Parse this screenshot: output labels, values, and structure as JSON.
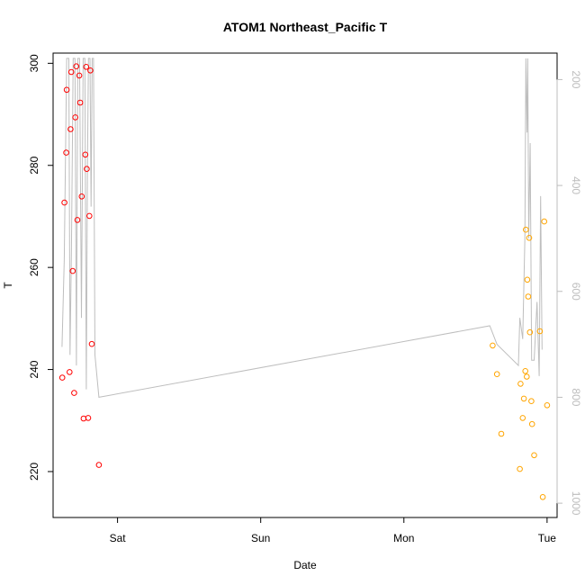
{
  "chart_data": {
    "type": "scatter",
    "title": "ATOM1 Northeast_Pacific T",
    "xlabel": "Date",
    "ylabel": "T",
    "x_unit": "days since Fri 00:00",
    "x_ticks": [
      {
        "x": 1,
        "label": "Sat"
      },
      {
        "x": 2,
        "label": "Sun"
      },
      {
        "x": 3,
        "label": "Mon"
      },
      {
        "x": 4,
        "label": "Tue"
      }
    ],
    "xlim": [
      0.55,
      4.07
    ],
    "ylim": [
      211,
      302
    ],
    "yticks": [
      220,
      240,
      260,
      280,
      300
    ],
    "y2_ticks": [
      200,
      400,
      600,
      800,
      1000
    ],
    "y2lim": [
      1027,
      150
    ],
    "colors": {
      "series1": "#ff0000",
      "series2": "#ffa500",
      "pressure_line": "#bebebe"
    },
    "series": [
      {
        "points": [
          [
            0.614,
            238.4
          ],
          [
            0.629,
            272.7
          ],
          [
            0.642,
            282.5
          ],
          [
            0.645,
            294.8
          ],
          [
            0.665,
            239.5
          ],
          [
            0.672,
            287.1
          ],
          [
            0.677,
            298.3
          ],
          [
            0.687,
            259.3
          ],
          [
            0.697,
            235.4
          ],
          [
            0.705,
            289.4
          ],
          [
            0.712,
            299.4
          ],
          [
            0.72,
            269.3
          ],
          [
            0.733,
            297.6
          ],
          [
            0.739,
            292.3
          ],
          [
            0.75,
            273.9
          ],
          [
            0.763,
            230.4
          ],
          [
            0.775,
            282.1
          ],
          [
            0.781,
            299.3
          ],
          [
            0.785,
            279.3
          ],
          [
            0.795,
            230.5
          ],
          [
            0.803,
            270.1
          ],
          [
            0.81,
            298.6
          ],
          [
            0.82,
            245.0
          ],
          [
            0.87,
            221.3
          ]
        ]
      },
      {
        "points": [
          [
            3.62,
            244.7
          ],
          [
            3.65,
            239.1
          ],
          [
            3.68,
            227.4
          ],
          [
            3.81,
            220.5
          ],
          [
            3.815,
            237.2
          ],
          [
            3.83,
            230.5
          ],
          [
            3.838,
            234.3
          ],
          [
            3.848,
            239.7
          ],
          [
            3.852,
            267.4
          ],
          [
            3.858,
            238.6
          ],
          [
            3.862,
            257.6
          ],
          [
            3.868,
            254.3
          ],
          [
            3.875,
            265.8
          ],
          [
            3.88,
            247.3
          ],
          [
            3.89,
            233.8
          ],
          [
            3.895,
            229.3
          ],
          [
            3.91,
            223.2
          ],
          [
            3.95,
            247.5
          ],
          [
            3.97,
            215.0
          ],
          [
            3.98,
            269.0
          ],
          [
            4.0,
            233.0
          ]
        ]
      }
    ],
    "pressure_line": [
      [
        0.612,
        705
      ],
      [
        0.628,
        540
      ],
      [
        0.645,
        160
      ],
      [
        0.66,
        160
      ],
      [
        0.668,
        720
      ],
      [
        0.678,
        520
      ],
      [
        0.69,
        160
      ],
      [
        0.703,
        160
      ],
      [
        0.713,
        740
      ],
      [
        0.722,
        160
      ],
      [
        0.735,
        160
      ],
      [
        0.748,
        650
      ],
      [
        0.76,
        160
      ],
      [
        0.772,
        160
      ],
      [
        0.782,
        785
      ],
      [
        0.79,
        360
      ],
      [
        0.797,
        160
      ],
      [
        0.808,
        160
      ],
      [
        0.815,
        440
      ],
      [
        0.823,
        160
      ],
      [
        0.832,
        160
      ],
      [
        0.842,
        720
      ],
      [
        0.87,
        800
      ],
      [
        3.6,
        665
      ],
      [
        3.65,
        700
      ],
      [
        3.8,
        740
      ],
      [
        3.81,
        650
      ],
      [
        3.83,
        690
      ],
      [
        3.845,
        500
      ],
      [
        3.852,
        160
      ],
      [
        3.86,
        300
      ],
      [
        3.865,
        160
      ],
      [
        3.872,
        500
      ],
      [
        3.882,
        320
      ],
      [
        3.892,
        730
      ],
      [
        3.91,
        730
      ],
      [
        3.93,
        620
      ],
      [
        3.945,
        760
      ],
      [
        3.955,
        420
      ],
      [
        3.965,
        710
      ]
    ]
  }
}
